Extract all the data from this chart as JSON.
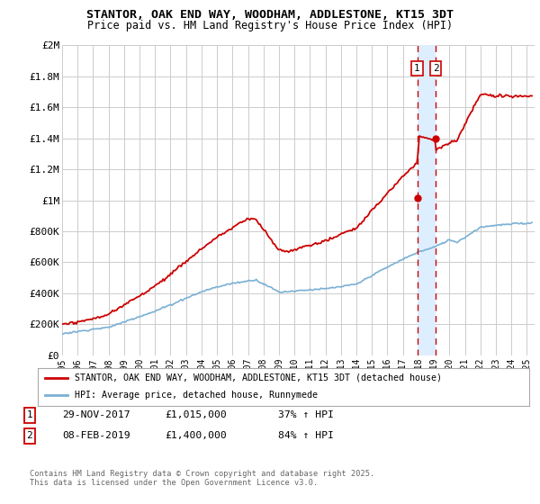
{
  "title1": "STANTOR, OAK END WAY, WOODHAM, ADDLESTONE, KT15 3DT",
  "title2": "Price paid vs. HM Land Registry's House Price Index (HPI)",
  "legend1": "STANTOR, OAK END WAY, WOODHAM, ADDLESTONE, KT15 3DT (detached house)",
  "legend2": "HPI: Average price, detached house, Runnymede",
  "footer": "Contains HM Land Registry data © Crown copyright and database right 2025.\nThis data is licensed under the Open Government Licence v3.0.",
  "event1_date": "29-NOV-2017",
  "event1_price": "£1,015,000",
  "event1_hpi": "37% ↑ HPI",
  "event2_date": "08-FEB-2019",
  "event2_price": "£1,400,000",
  "event2_hpi": "84% ↑ HPI",
  "red_color": "#cc0000",
  "blue_color": "#7ab0d4",
  "shade_color": "#ddeeff",
  "grid_color": "#cccccc",
  "bg_color": "#ffffff",
  "ylim": [
    0,
    2000000
  ],
  "yticks": [
    0,
    200000,
    400000,
    600000,
    800000,
    1000000,
    1200000,
    1400000,
    1600000,
    1800000,
    2000000
  ],
  "ytick_labels": [
    "£0",
    "£200K",
    "£400K",
    "£600K",
    "£800K",
    "£1M",
    "£1.2M",
    "£1.4M",
    "£1.6M",
    "£1.8M",
    "£2M"
  ],
  "xmin": 1995.0,
  "xmax": 2025.5,
  "event1_x": 2017.92,
  "event2_x": 2019.12,
  "event1_y": 1015000,
  "event2_y": 1400000
}
